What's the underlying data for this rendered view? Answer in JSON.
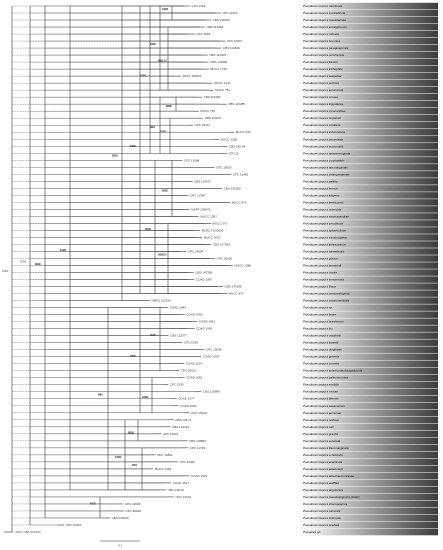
{
  "figure": {
    "kind": "phylogenetic-tree",
    "scale_bar_label": "0.1",
    "gradient_start": "#ffffff",
    "gradient_end": "#3c3c3c"
  },
  "taxa": [
    {
      "strain": "CPC 1263",
      "species": "Pseudocercospora natalensis"
    },
    {
      "strain": "CPC 11512",
      "species": "Pseudocercospora cymbidiicola"
    },
    {
      "strain": "CBS 133433",
      "species": "Pseudocercospora macadamiae"
    },
    {
      "strain": "CBS 114284",
      "species": "Pseudocercospora eucalyptorum"
    },
    {
      "strain": "CPC 1963",
      "species": "Pseudocercospora robusta"
    },
    {
      "strain": "CPC 10397",
      "species": "Pseudocercospora brunnea"
    },
    {
      "strain": "CBS 114826",
      "species": "Pseudocercospora paraguayensis"
    },
    {
      "strain": "CBS 116405",
      "species": "Pseudocercospora norchiensis"
    },
    {
      "strain": "CBS 131581",
      "species": "Pseudocercospora fraxinii"
    },
    {
      "strain": "MUCC 1736",
      "species": "Pseudocercospora trichophila"
    },
    {
      "strain": "MAFF 238161",
      "species": "Pseudocercospora weigeliae"
    },
    {
      "strain": "MUCC 1214",
      "species": "Pseudocercospora profusa"
    },
    {
      "strain": "MUCC 752",
      "species": "Pseudocercospora tecomicola"
    },
    {
      "strain": "CBS 115400",
      "species": "Pseudocercospora crocea"
    },
    {
      "strain": "CBS 113285",
      "species": "Pseudocercospora kiggelariae"
    },
    {
      "strain": "MUCC 733",
      "species": "Pseudocercospora pyracanthae"
    },
    {
      "strain": "CBS 114247",
      "species": "Pseudocercospora nogalesii"
    },
    {
      "strain": "CPC 10211",
      "species": "Pseudocercospora cordiana"
    },
    {
      "strain": "MUCC 910",
      "species": "Pseudocercospora indonesiana"
    },
    {
      "strain": "MUCC 1290",
      "species": "Pseudocercospora pouzolziae"
    },
    {
      "strain": "CBS 242.94",
      "species": "Pseudocercospora eustomatis"
    },
    {
      "strain": "CPC 11",
      "species": "Pseudocercospora epispermogonia"
    },
    {
      "strain": "CPC 11668",
      "species": "Pseudocercospora corylopsidis"
    },
    {
      "strain": "CPC 10055",
      "species": "Pseudocercospora atromarginalis"
    },
    {
      "strain": "CPC 11460",
      "species": "Pseudocercospora chiangmaiensis"
    },
    {
      "strain": "CBS 114672",
      "species": "Pseudocercospora pallida"
    },
    {
      "strain": "CBS 131590",
      "species": "Pseudocercospora humuli"
    },
    {
      "strain": "CPC 17547",
      "species": "Pseudocercospora fuligena"
    },
    {
      "strain": "MUCC 679",
      "species": "Pseudocercospora tereticornis"
    },
    {
      "strain": "MAFF 238479",
      "species": "Pseudocercospora ocimicola"
    },
    {
      "strain": "MUCC 1257",
      "species": "Pseudocercospora stephanandrae"
    },
    {
      "strain": "MUCC 570",
      "species": "Pseudocercospora cercidicola"
    },
    {
      "strain": "BCRC FU30203",
      "species": "Pseudocercospora sphaerulinae"
    },
    {
      "strain": "MUCC 2679",
      "species": "Pseudocercospora sambucigena"
    },
    {
      "strain": "CBS 147393",
      "species": "Pseudocercospora lythracearum"
    },
    {
      "strain": "CPC 14094",
      "species": "Pseudocercospora haiweiensis"
    },
    {
      "strain": "CPC 20020",
      "species": "Pseudocercospora glauca"
    },
    {
      "strain": "MUCC 1288",
      "species": "Pseudocercospora tamarindi"
    },
    {
      "strain": "CBS 147389",
      "species": "Pseudocercospora ixorae"
    },
    {
      "strain": "COAD 1087",
      "species": "Pseudocercospora lonicericola"
    },
    {
      "strain": "CBS 147388",
      "species": "Pseudocercospora lilacis"
    },
    {
      "strain": "MUCC 873",
      "species": "Pseudocercospora pyracanthigena"
    },
    {
      "strain": "NBRC 102100",
      "species": "Pseudocercospora cryptomeriicola"
    },
    {
      "strain": "COAD 1484",
      "species": "Pseudocercospora sp."
    },
    {
      "strain": "COAD 2362",
      "species": "Pseudocercospora bixae"
    },
    {
      "strain": "COAD 1991",
      "species": "Pseudocercospora brasiliensis"
    },
    {
      "strain": "COAD 1903",
      "species": "Pseudocercospora fici"
    },
    {
      "strain": "CBS 113377",
      "species": "Pseudocercospora manihotii"
    },
    {
      "strain": "CPC 1935",
      "species": "Pseudocercospora luzardii"
    },
    {
      "strain": "CPC 13048",
      "species": "Pseudocercospora dingleyae"
    },
    {
      "strain": "COAD 1078",
      "species": "Pseudocercospora griseola"
    },
    {
      "strain": "COAD 1514",
      "species": "Pseudocercospora cruenta"
    },
    {
      "strain": "CPC 20021",
      "species": "Pseudocercospora solani-pseudocapsicicola"
    },
    {
      "strain": "COAD 1062",
      "species": "Pseudocercospora palleobrunnea"
    },
    {
      "strain": "CPC 1250",
      "species": "Pseudocercospora sordida"
    },
    {
      "strain": "CBS 110999",
      "species": "Pseudocercospora musae"
    },
    {
      "strain": "COAD 1077",
      "species": "Pseudocercospora fijiensis"
    },
    {
      "strain": "COAD 1002",
      "species": "Pseudocercospora assamensis"
    },
    {
      "strain": "CPC 15240",
      "species": "Pseudocercospora eumusae"
    },
    {
      "strain": "CBS 124.71",
      "species": "Pseudocercospora nodosa"
    },
    {
      "strain": "CBS 122312",
      "species": "Pseudocercospora rubi"
    },
    {
      "strain": "CPC 11510",
      "species": "Pseudocercospora gracilis"
    },
    {
      "strain": "CBS 118896",
      "species": "Pseudocercospora subulata"
    },
    {
      "strain": "CPC 11739",
      "species": "Pseudocercospora flavomarginata"
    },
    {
      "strain": "CPC 12802",
      "species": "Pseudocercospora schizolobii"
    },
    {
      "strain": "CPC 12961",
      "species": "Pseudocercospora acaciicola"
    },
    {
      "strain": "MUCC 1484",
      "species": "Pseudocercospora elaeocarpi"
    },
    {
      "strain": "COAD 1501",
      "species": "Pseudocercospora tabernaemontanae"
    },
    {
      "strain": "COAD 1517",
      "species": "Pseudocercospora wulffiae"
    },
    {
      "strain": "CBS 148.33",
      "species": "Pseudocercospora angolensis"
    },
    {
      "strain": "CPC 14734",
      "species": "Pseudocercospora pseudostigmina-platani"
    },
    {
      "strain": "CPC 22698",
      "species": "Pseudocercospora chamaesyces"
    },
    {
      "strain": "CPC 38030",
      "species": "Pseudocercospora pancratii"
    },
    {
      "strain": "CBS 130025",
      "species": "Pseudocercospora zelkovae"
    },
    {
      "strain": "CPC 15263",
      "species": "Pseudocercospora ocellata"
    },
    {
      "strain": "CBS 124744",
      "species": "Passalora sp."
    }
  ],
  "supports": [
    "100/1",
    "99/1",
    "97/1",
    "98/1",
    "100/1",
    "95/1",
    "100/1",
    "96/1",
    "99/0.99",
    "100/1",
    "94/1",
    "100/1",
    "99/1",
    "100/1",
    "92/1",
    "100/1",
    "97/1",
    "100/1",
    "98/1",
    "100/1",
    "100/1",
    "99/1",
    "100/1",
    "100/1",
    "100/1",
    "93/0.98",
    "100/1",
    "100/1",
    "100/1",
    "98/1",
    "100/1",
    "100/1",
    "100/1",
    "99/1",
    "100/1",
    "99/1",
    "100/1",
    "100/1",
    "100/1",
    "96/1",
    "99/1",
    "100/1",
    "99/1",
    "100/1",
    "99/1",
    "100/1"
  ]
}
